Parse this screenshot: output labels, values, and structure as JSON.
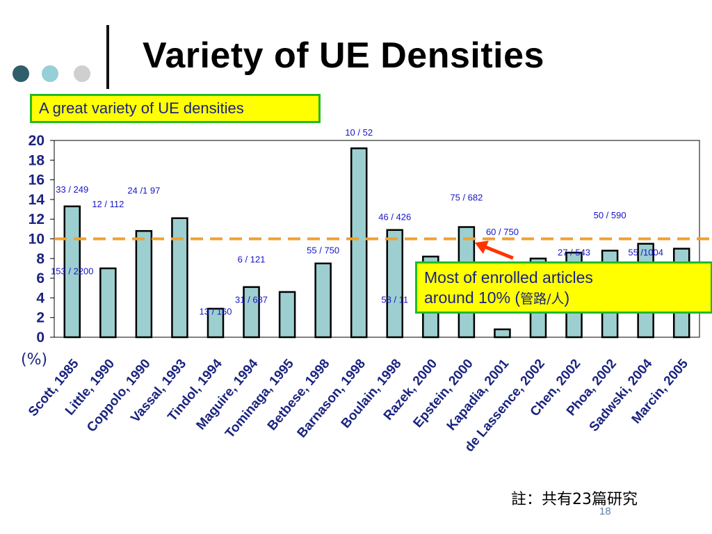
{
  "slide": {
    "title": "Variety of UE Densities",
    "subtitle": "A great variety of UE densities",
    "callout_line1": "Most of enrolled articles",
    "callout_line2": "around 10% (",
    "callout_cjk": "管路/人",
    "callout_close": ")",
    "footnote": "註：共有23篇研究",
    "page_number": "18",
    "y_unit": "(%)"
  },
  "colors": {
    "bar_fill": "#9dcfd0",
    "bar_stroke": "#000000",
    "ref_line": "#f0a030",
    "bar_label": "#1515c8",
    "axis_text": "#1a237e",
    "dot_dark": "#2f5f6a",
    "dot_mid": "#96cfd8",
    "dot_light": "#cfcfcf",
    "box_fill": "#ffff00",
    "box_border": "#22bb22",
    "arrow": "#ff3300"
  },
  "icons": [
    "decorative-dot-dark",
    "decorative-dot-mid",
    "decorative-dot-light",
    "callout-arrow-icon"
  ],
  "chart_data": {
    "type": "bar",
    "categories": [
      "Scott, 1985",
      "Little, 1990",
      "Coppolo, 1990",
      "Vassal, 1993",
      "Tindol, 1994",
      "Maguire, 1994",
      "Tominaga, 1995",
      "Betbese, 1998",
      "Barnason, 1998",
      "Boulain, 1998",
      "Razek, 2000",
      "Epstein, 2000",
      "Kapadia, 2001",
      "de Lassence, 2002",
      "Chen, 2002",
      "Phoa, 2002",
      "Sadwski, 2004",
      "Marcin, 2005"
    ],
    "values": [
      13.3,
      7.0,
      10.8,
      12.1,
      2.9,
      5.1,
      4.6,
      7.5,
      19.2,
      10.9,
      8.2,
      11.2,
      0.8,
      8.0,
      8.6,
      8.8,
      9.5,
      9.0
    ],
    "ylim": [
      0,
      20
    ],
    "yticks": [
      0,
      2,
      4,
      6,
      8,
      10,
      12,
      14,
      16,
      18,
      20
    ],
    "reference_line": 10,
    "grid": false,
    "data_labels": [
      {
        "text": "33 / 249",
        "x": "Scott, 1985",
        "y": 14.7
      },
      {
        "text": "153 / 2200",
        "x": "Scott, 1985",
        "y": 6.4
      },
      {
        "text": "12 / 112",
        "x": "Little, 1990",
        "y": 13.2
      },
      {
        "text": "24 /1 97",
        "x": "Coppolo, 1990",
        "y": 14.6
      },
      {
        "text": "13 / 160",
        "x": "Tindol, 1994",
        "y": 2.3
      },
      {
        "text": "6 / 121",
        "x": "Maguire, 1994",
        "y": 7.6
      },
      {
        "text": "31 / 687",
        "x": "Maguire, 1994",
        "y": 3.5
      },
      {
        "text": "55 / 750",
        "x": "Betbese, 1998",
        "y": 8.5
      },
      {
        "text": "10 / 52",
        "x": "Barnason, 1998",
        "y": 20.5
      },
      {
        "text": "46 / 426",
        "x": "Boulain, 1998",
        "y": 11.9
      },
      {
        "text": "58 / 11",
        "x": "Boulain, 1998",
        "y": 3.5
      },
      {
        "text": "75 / 682",
        "x": "Epstein, 2000",
        "y": 13.9
      },
      {
        "text": "60 / 750",
        "x": "Kapadia, 2001",
        "y": 10.4
      },
      {
        "text": "27 / 543",
        "x": "Chen, 2002",
        "y": 8.3
      },
      {
        "text": "50 / 590",
        "x": "Phoa, 2002",
        "y": 12.1
      },
      {
        "text": "55 /1004",
        "x": "Sadwski, 2004",
        "y": 8.3
      }
    ]
  }
}
